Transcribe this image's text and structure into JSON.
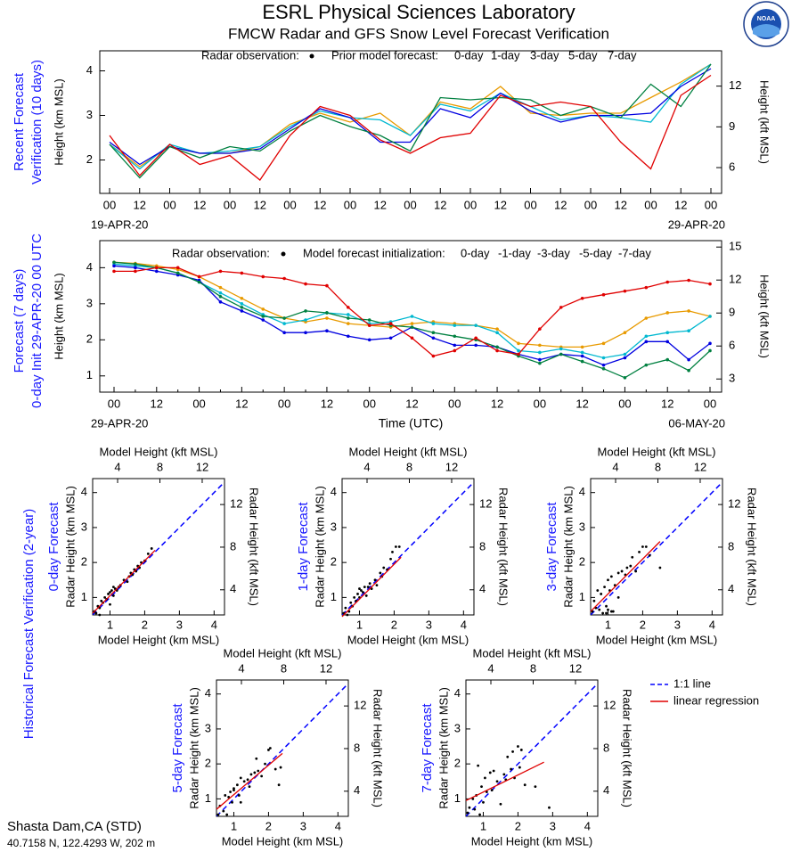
{
  "header": {
    "title": "ESRL Physical Sciences Laboratory",
    "subtitle": "FMCW Radar and GFS Snow Level Forecast Verification",
    "logo_text": "NOAA"
  },
  "section_label": "Historical Forecast Verification (2-year)",
  "scatter_legend": [
    {
      "name": "1:1 line",
      "color": "#0000ff"
    },
    {
      "name": "linear regression",
      "color": "#e00000"
    }
  ],
  "footer": {
    "station": "Shasta Dam,CA (STD)",
    "location": "40.7158 N, 122.4293 W, 202 m"
  },
  "chart_data": [
    {
      "type": "line",
      "side_label": [
        "Recent Forecast",
        "Verification (10 days)"
      ],
      "ylabel": "Height (km MSL)",
      "y2label": "Height (kft MSL)",
      "legend_obs": "Radar observation:",
      "legend_models": "Prior model forecast:",
      "date_start": "19-APR-20",
      "date_end": "29-APR-20",
      "categories": [
        "00",
        "12",
        "00",
        "12",
        "00",
        "12",
        "00",
        "12",
        "00",
        "12",
        "00",
        "12",
        "00",
        "12",
        "00",
        "12",
        "00",
        "12",
        "00",
        "12",
        "00"
      ],
      "ylim": [
        1.25,
        4.45
      ],
      "yticks": [
        2,
        3,
        4
      ],
      "y2lim": [
        4.101,
        14.6
      ],
      "y2ticks": [
        6,
        9,
        12
      ],
      "markers": false,
      "series": [
        {
          "name": "0-day",
          "color": "#e89a00",
          "values": [
            2.35,
            1.85,
            2.3,
            2.15,
            2.15,
            2.3,
            2.8,
            3.05,
            2.85,
            3.05,
            2.55,
            3.3,
            3.15,
            3.65,
            3.05,
            3.0,
            3.05,
            3.05,
            3.4,
            3.75,
            4.15
          ]
        },
        {
          "name": "1-day",
          "color": "#00b8d0",
          "values": [
            2.35,
            1.8,
            2.35,
            2.15,
            2.2,
            2.3,
            2.75,
            3.1,
            2.95,
            2.9,
            2.55,
            3.25,
            3.1,
            3.5,
            3.2,
            2.9,
            3.0,
            2.95,
            2.85,
            3.7,
            4.15
          ]
        },
        {
          "name": "3-day",
          "color": "#0000e0",
          "values": [
            2.4,
            1.9,
            2.3,
            2.15,
            2.15,
            2.25,
            2.7,
            3.15,
            2.95,
            2.4,
            2.4,
            3.15,
            2.95,
            3.5,
            3.1,
            2.85,
            3.0,
            3.0,
            3.05,
            3.65,
            4.05
          ]
        },
        {
          "name": "5-day",
          "color": "#008040",
          "values": [
            2.35,
            1.6,
            2.3,
            2.05,
            2.3,
            2.2,
            2.65,
            3.0,
            2.75,
            2.55,
            2.2,
            3.4,
            3.35,
            3.4,
            3.35,
            3.0,
            3.2,
            2.95,
            3.7,
            3.2,
            4.15
          ]
        },
        {
          "name": "7-day",
          "color": "#e00000",
          "values": [
            2.55,
            1.65,
            2.35,
            1.9,
            2.1,
            1.55,
            2.55,
            3.2,
            3.0,
            2.45,
            2.15,
            2.5,
            2.6,
            3.45,
            3.2,
            3.3,
            3.2,
            2.4,
            1.8,
            3.45,
            3.9
          ]
        }
      ]
    },
    {
      "type": "line",
      "side_label": [
        "Forecast (7 days)",
        "0-day Init 29-APR-20 00 UTC"
      ],
      "ylabel": "Height (km MSL)",
      "y2label": "Height (kft MSL)",
      "xlabel": "Time (UTC)",
      "legend_obs": "Radar observation:",
      "legend_models": "Model forecast initialization:",
      "date_start": "29-APR-20",
      "date_end": "06-MAY-20",
      "categories": [
        "00",
        null,
        "12",
        null,
        "00",
        null,
        "12",
        null,
        "00",
        null,
        "12",
        null,
        "00",
        null,
        "12",
        null,
        "00",
        null,
        "12",
        null,
        "00",
        null,
        "12",
        null,
        "00",
        null,
        "12",
        null,
        "00"
      ],
      "ylim": [
        0.55,
        4.75
      ],
      "yticks": [
        1,
        2,
        3,
        4
      ],
      "y2lim": [
        1.804,
        15.584
      ],
      "y2ticks": [
        3,
        6,
        9,
        12,
        15
      ],
      "markers": true,
      "series": [
        {
          "name": "0-day",
          "color": "#e89a00",
          "values": [
            4.15,
            4.12,
            4.05,
            3.95,
            3.75,
            3.45,
            3.15,
            2.85,
            2.6,
            2.5,
            2.6,
            2.45,
            2.4,
            2.35,
            2.45,
            2.5,
            2.45,
            2.4,
            2.3,
            1.9,
            1.85,
            1.8,
            1.8,
            1.9,
            2.2,
            2.6,
            2.75,
            2.8,
            2.65
          ]
        },
        {
          "name": "-1-day",
          "color": "#00b8d0",
          "values": [
            4.1,
            4.05,
            4.0,
            3.85,
            3.6,
            3.3,
            3.0,
            2.7,
            2.45,
            2.55,
            2.75,
            2.7,
            2.45,
            2.5,
            2.65,
            2.45,
            2.4,
            2.4,
            2.2,
            1.7,
            1.65,
            1.75,
            1.65,
            1.5,
            1.6,
            2.1,
            2.2,
            2.25,
            2.65
          ]
        },
        {
          "name": "-3-day",
          "color": "#0000e0",
          "values": [
            4.05,
            4.0,
            3.9,
            3.8,
            3.65,
            3.05,
            2.8,
            2.55,
            2.2,
            2.2,
            2.25,
            2.1,
            2.0,
            2.05,
            2.35,
            2.05,
            1.85,
            1.85,
            1.8,
            1.6,
            1.45,
            1.6,
            1.55,
            1.3,
            1.5,
            1.95,
            1.95,
            1.45,
            1.9
          ]
        },
        {
          "name": "-5-day",
          "color": "#008040",
          "values": [
            4.15,
            4.1,
            4.0,
            3.85,
            3.6,
            3.2,
            2.9,
            2.65,
            2.6,
            2.8,
            2.75,
            2.6,
            2.55,
            2.4,
            2.35,
            2.2,
            2.1,
            2.0,
            1.8,
            1.55,
            1.35,
            1.6,
            1.4,
            1.2,
            0.95,
            1.3,
            1.45,
            1.15,
            1.7
          ]
        },
        {
          "name": "-7-day",
          "color": "#e00000",
          "values": [
            3.9,
            3.9,
            4.0,
            4.0,
            3.75,
            3.9,
            3.85,
            3.75,
            3.7,
            3.55,
            3.5,
            2.9,
            2.4,
            2.45,
            2.05,
            1.55,
            1.7,
            2.05,
            1.7,
            1.6,
            2.3,
            2.9,
            3.15,
            3.25,
            3.35,
            3.45,
            3.6,
            3.65,
            3.55
          ]
        }
      ]
    },
    {
      "type": "scatter",
      "title": "0-day Forecast",
      "xlabel": "Model Height (km MSL)",
      "ylabel": "Radar Height (km MSL)",
      "x2label": "Model Height (kft MSL)",
      "y2label": "Radar Height (kft MSL)",
      "xlim": [
        0.5,
        4.3
      ],
      "ylim": [
        0.5,
        4.4
      ],
      "xticks": [
        1,
        2,
        3,
        4
      ],
      "yticks": [
        1,
        2,
        3,
        4
      ],
      "x2lim": [
        1.64,
        14.108
      ],
      "y2lim": [
        1.64,
        14.436
      ],
      "x2ticks": [
        4,
        8,
        12
      ],
      "y2ticks": [
        4,
        8,
        12
      ],
      "x": [
        0.55,
        0.6,
        0.65,
        0.7,
        0.75,
        0.8,
        0.85,
        0.9,
        0.95,
        1.0,
        1.05,
        1.1,
        1.15,
        1.2,
        1.25,
        1.3,
        1.4,
        1.5,
        1.55,
        1.6,
        1.65,
        1.7,
        1.75,
        1.8,
        1.85,
        1.9,
        2.0,
        2.1,
        2.2,
        0.7,
        1.0,
        1.1
      ],
      "values": [
        0.6,
        0.55,
        0.75,
        0.7,
        0.9,
        0.85,
        1.0,
        0.95,
        1.1,
        1.15,
        1.2,
        1.05,
        1.25,
        1.2,
        1.3,
        1.35,
        1.5,
        1.45,
        1.6,
        1.7,
        1.65,
        1.8,
        1.75,
        1.9,
        1.85,
        2.0,
        2.05,
        2.25,
        2.4,
        0.5,
        0.8,
        1.3
      ],
      "regression": {
        "x": [
          0.5,
          2.3
        ],
        "values": [
          0.55,
          2.35
        ]
      }
    },
    {
      "type": "scatter",
      "title": "1-day Forecast",
      "xlabel": "Model Height (km MSL)",
      "ylabel": "Radar Height (km MSL)",
      "x2label": "Model Height (kft MSL)",
      "y2label": "Radar Height (kft MSL)",
      "xlim": [
        0.5,
        4.3
      ],
      "ylim": [
        0.5,
        4.4
      ],
      "xticks": [
        1,
        2,
        3,
        4
      ],
      "yticks": [
        1,
        2,
        3,
        4
      ],
      "x2lim": [
        1.64,
        14.108
      ],
      "y2lim": [
        1.64,
        14.436
      ],
      "x2ticks": [
        4,
        8,
        12
      ],
      "y2ticks": [
        4,
        8,
        12
      ],
      "x": [
        0.55,
        0.6,
        0.7,
        0.75,
        0.8,
        0.85,
        0.9,
        0.95,
        1.0,
        1.05,
        1.1,
        1.15,
        1.2,
        1.3,
        1.35,
        1.45,
        1.5,
        1.6,
        1.65,
        1.7,
        1.8,
        1.9,
        1.95,
        2.05,
        2.15,
        0.65,
        1.0,
        1.25
      ],
      "values": [
        0.55,
        0.7,
        0.6,
        0.85,
        0.75,
        1.0,
        0.9,
        1.1,
        1.0,
        1.2,
        1.15,
        1.3,
        1.05,
        1.4,
        1.25,
        1.5,
        1.35,
        1.7,
        1.6,
        1.85,
        1.8,
        2.1,
        2.3,
        2.45,
        2.45,
        0.5,
        1.25,
        1.3
      ],
      "regression": {
        "x": [
          0.5,
          2.2
        ],
        "values": [
          0.45,
          2.15
        ]
      }
    },
    {
      "type": "scatter",
      "title": "3-day Forecast",
      "xlabel": "Model Height (km MSL)",
      "ylabel": "Radar Height (km MSL)",
      "x2label": "Model Height (kft MSL)",
      "y2label": "Radar Height (kft MSL)",
      "xlim": [
        0.5,
        4.3
      ],
      "ylim": [
        0.5,
        4.4
      ],
      "xticks": [
        1,
        2,
        3,
        4
      ],
      "yticks": [
        1,
        2,
        3,
        4
      ],
      "x2lim": [
        1.64,
        14.108
      ],
      "y2lim": [
        1.64,
        14.436
      ],
      "x2ticks": [
        4,
        8,
        12
      ],
      "y2ticks": [
        4,
        8,
        12
      ],
      "x": [
        0.55,
        0.6,
        0.65,
        0.7,
        0.75,
        0.8,
        0.85,
        0.9,
        0.95,
        1.0,
        1.05,
        1.1,
        1.15,
        1.2,
        1.3,
        1.4,
        1.5,
        1.55,
        1.65,
        1.7,
        1.8,
        1.9,
        2.0,
        2.1,
        2.2,
        1.3,
        0.95,
        2.5,
        1.0,
        1.1
      ],
      "values": [
        0.6,
        0.9,
        0.7,
        1.2,
        0.65,
        1.1,
        0.55,
        1.3,
        0.75,
        1.5,
        1.2,
        1.6,
        0.6,
        1.35,
        1.7,
        1.75,
        1.65,
        1.85,
        1.9,
        2.15,
        1.75,
        2.3,
        2.45,
        2.45,
        2.2,
        1.0,
        0.55,
        1.85,
        0.65,
        0.6
      ],
      "regression": {
        "x": [
          0.5,
          2.5
        ],
        "values": [
          0.6,
          2.6
        ]
      }
    },
    {
      "type": "scatter",
      "title": "5-day Forecast",
      "xlabel": "Model Height (km MSL)",
      "ylabel": "Radar Height (km MSL)",
      "x2label": "Model Height (kft MSL)",
      "y2label": "Radar Height (kft MSL)",
      "xlim": [
        0.5,
        4.3
      ],
      "ylim": [
        0.5,
        4.4
      ],
      "xticks": [
        1,
        2,
        3,
        4
      ],
      "yticks": [
        1,
        2,
        3,
        4
      ],
      "x2lim": [
        1.64,
        14.108
      ],
      "y2lim": [
        1.64,
        14.436
      ],
      "x2ticks": [
        4,
        8,
        12
      ],
      "y2ticks": [
        4,
        8,
        12
      ],
      "x": [
        0.55,
        0.6,
        0.7,
        0.75,
        0.8,
        0.9,
        0.95,
        1.0,
        1.1,
        1.15,
        1.2,
        1.3,
        1.4,
        1.45,
        1.5,
        1.6,
        1.7,
        1.8,
        1.9,
        2.0,
        2.05,
        2.2,
        2.35,
        1.0,
        1.2,
        0.85,
        1.65,
        2.3
      ],
      "values": [
        0.55,
        0.8,
        0.65,
        1.1,
        0.55,
        1.2,
        0.9,
        1.3,
        1.4,
        1.1,
        1.6,
        1.5,
        1.55,
        1.35,
        1.7,
        1.75,
        1.8,
        1.65,
        2.0,
        2.4,
        2.45,
        1.85,
        1.9,
        1.25,
        0.9,
        1.05,
        2.15,
        1.4
      ],
      "regression": {
        "x": [
          0.5,
          2.4
        ],
        "values": [
          0.7,
          2.3
        ]
      }
    },
    {
      "type": "scatter",
      "title": "7-day Forecast",
      "xlabel": "Model Height (km MSL)",
      "ylabel": "Radar Height (km MSL)",
      "x2label": "Model Height (kft MSL)",
      "y2label": "Radar Height (kft MSL)",
      "xlim": [
        0.5,
        4.3
      ],
      "ylim": [
        0.5,
        4.4
      ],
      "xticks": [
        1,
        2,
        3,
        4
      ],
      "yticks": [
        1,
        2,
        3,
        4
      ],
      "x2lim": [
        1.64,
        14.108
      ],
      "y2lim": [
        1.64,
        14.436
      ],
      "x2ticks": [
        4,
        8,
        12
      ],
      "y2ticks": [
        4,
        8,
        12
      ],
      "x": [
        0.55,
        0.6,
        0.7,
        0.75,
        0.8,
        0.9,
        0.95,
        1.0,
        1.05,
        1.1,
        1.2,
        1.3,
        1.4,
        1.5,
        1.6,
        1.7,
        1.8,
        1.85,
        1.9,
        2.0,
        2.1,
        2.2,
        2.5,
        2.9,
        1.25,
        0.85,
        1.65,
        2.05
      ],
      "values": [
        0.6,
        0.75,
        1.0,
        0.7,
        1.1,
        0.55,
        1.35,
        0.9,
        1.6,
        1.2,
        1.75,
        1.8,
        1.5,
        0.85,
        1.7,
        2.2,
        1.85,
        2.35,
        1.6,
        2.5,
        2.4,
        1.4,
        1.35,
        0.75,
        1.25,
        1.95,
        1.55,
        1.9
      ],
      "regression": {
        "x": [
          0.5,
          2.75
        ],
        "values": [
          0.95,
          2.05
        ]
      }
    }
  ]
}
